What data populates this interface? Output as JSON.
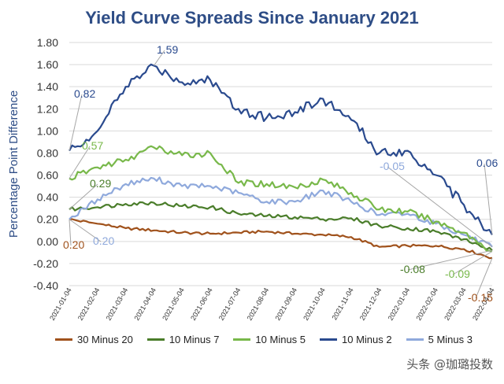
{
  "chart_data": {
    "type": "line",
    "title": "Yield Curve Spreads Since January 2021",
    "ylabel": "Percentage Point Difference",
    "xlabel": "",
    "ylim": [
      -0.4,
      1.8
    ],
    "yticks": [
      "1.80",
      "1.60",
      "1.40",
      "1.20",
      "1.00",
      "0.80",
      "0.60",
      "0.40",
      "0.20",
      "0.00",
      "-0.20",
      "-0.40"
    ],
    "ytick_values": [
      1.8,
      1.6,
      1.4,
      1.2,
      1.0,
      0.8,
      0.6,
      0.4,
      0.2,
      0.0,
      -0.2,
      -0.4
    ],
    "x": [
      "2021-01-04",
      "2021-02-04",
      "2021-03-04",
      "2021-04-04",
      "2021-05-04",
      "2021-06-04",
      "2021-07-04",
      "2021-08-04",
      "2021-09-04",
      "2021-10-04",
      "2021-11-04",
      "2021-12-04",
      "2022-01-04",
      "2022-02-04",
      "2022-03-04",
      "2022-04-04"
    ],
    "grid": true,
    "legend_position": "bottom",
    "series": [
      {
        "name": "30 Minus 20",
        "color": "#a0521c",
        "values": [
          0.2,
          0.16,
          0.12,
          0.1,
          0.08,
          0.07,
          0.08,
          0.09,
          0.07,
          0.06,
          0.04,
          -0.05,
          -0.04,
          -0.04,
          -0.07,
          -0.15
        ]
      },
      {
        "name": "10 Minus 7",
        "color": "#4a7d2a",
        "values": [
          0.29,
          0.31,
          0.34,
          0.35,
          0.32,
          0.31,
          0.25,
          0.23,
          0.22,
          0.2,
          0.21,
          0.14,
          0.12,
          0.09,
          0.02,
          -0.08
        ]
      },
      {
        "name": "10 Minus 5",
        "color": "#78b84a",
        "values": [
          0.57,
          0.67,
          0.74,
          0.85,
          0.78,
          0.8,
          0.53,
          0.52,
          0.49,
          0.56,
          0.44,
          0.29,
          0.27,
          0.18,
          0.08,
          -0.09
        ]
      },
      {
        "name": "10 Minus 2",
        "color": "#2a4a8e",
        "values": [
          0.82,
          1.0,
          1.4,
          1.59,
          1.44,
          1.46,
          1.2,
          1.12,
          1.17,
          1.29,
          1.1,
          0.8,
          0.82,
          0.6,
          0.33,
          0.06
        ]
      },
      {
        "name": "5 Minus 3",
        "color": "#8fa9dc",
        "values": [
          0.2,
          0.38,
          0.52,
          0.57,
          0.5,
          0.5,
          0.44,
          0.36,
          0.36,
          0.46,
          0.36,
          0.24,
          0.25,
          0.16,
          0.06,
          -0.05
        ]
      }
    ],
    "annotations": [
      {
        "text": "0.82",
        "series": "10 Minus 2"
      },
      {
        "text": "1.59",
        "series": "10 Minus 2"
      },
      {
        "text": "0.06",
        "series": "10 Minus 2"
      },
      {
        "text": "0.57",
        "series": "10 Minus 5"
      },
      {
        "text": "-0.09",
        "series": "10 Minus 5"
      },
      {
        "text": "0.29",
        "series": "10 Minus 7"
      },
      {
        "text": "-0.08",
        "series": "10 Minus 7"
      },
      {
        "text": "0.20",
        "series": "30 Minus 20"
      },
      {
        "text": "-0.15",
        "series": "30 Minus 20"
      },
      {
        "text": "0.20",
        "series": "5 Minus 3"
      },
      {
        "text": "-0.05",
        "series": "5 Minus 3"
      }
    ]
  },
  "watermark": "头条 @珈璐投数"
}
